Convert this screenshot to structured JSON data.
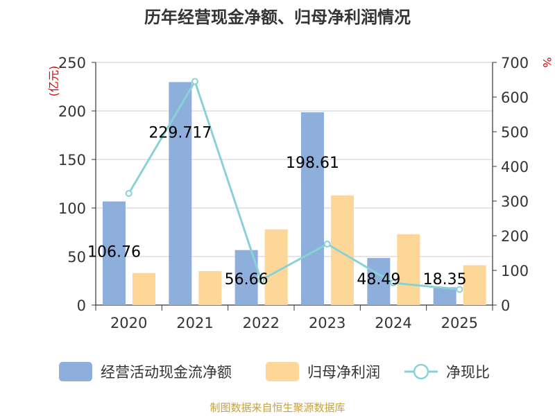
{
  "source": "制图数据来自恒生聚源数据库",
  "chart_data": {
    "type": "bar",
    "title": "历年经营现金净额、归母净利润情况",
    "categories": [
      "2020",
      "2021",
      "2022",
      "2023",
      "2024",
      "2025"
    ],
    "left_axis": {
      "unit": "(亿元)",
      "ylim": [
        0,
        250
      ],
      "ticks": [
        0,
        50,
        100,
        150,
        200,
        250
      ]
    },
    "right_axis": {
      "unit": "%",
      "ylim": [
        0,
        700
      ],
      "ticks": [
        0,
        100,
        200,
        300,
        400,
        500,
        600,
        700
      ]
    },
    "series": [
      {
        "name": "经营活动现金流净额",
        "type": "bar",
        "axis": "left",
        "color": "#8eaedb",
        "values": [
          106.76,
          229.717,
          56.66,
          198.61,
          48.49,
          18.35
        ],
        "labels": [
          "106.76",
          "229.717",
          "56.66",
          "198.61",
          "48.49",
          "18.35"
        ]
      },
      {
        "name": "归母净利润",
        "type": "bar",
        "axis": "left",
        "color": "#fdd797",
        "values": [
          33,
          35,
          78,
          113,
          73,
          41
        ]
      },
      {
        "name": "净现比",
        "type": "line",
        "axis": "right",
        "color": "#88d2d6",
        "values": [
          322,
          645,
          72,
          176,
          64,
          45
        ]
      }
    ],
    "legend_position": "bottom"
  }
}
